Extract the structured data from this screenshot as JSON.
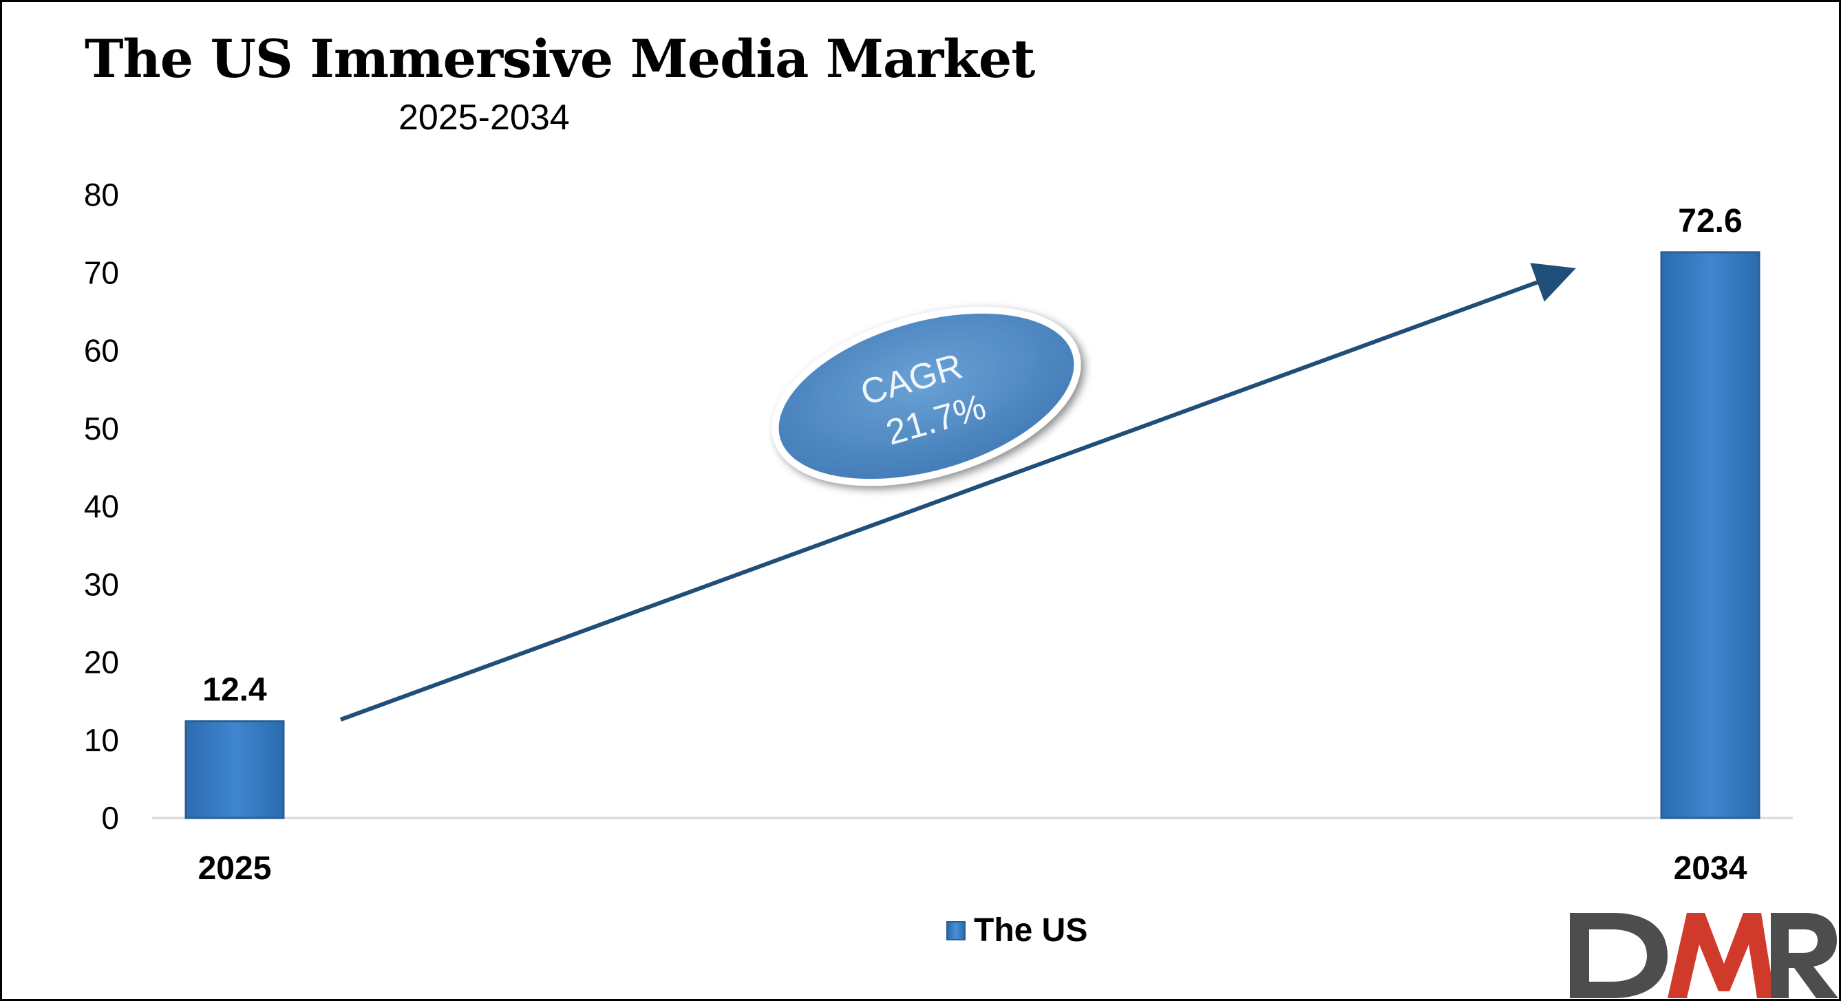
{
  "chart_data": {
    "type": "bar",
    "title": "The US Immersive Media Market",
    "subtitle": "2025-2034",
    "categories": [
      "2025",
      "2034"
    ],
    "series": [
      {
        "name": "The US",
        "values": [
          12.4,
          72.6
        ]
      }
    ],
    "data_labels": [
      "12.4",
      "72.6"
    ],
    "ylim": [
      0,
      80
    ],
    "yticks": [
      0,
      10,
      20,
      30,
      40,
      50,
      60,
      70,
      80
    ],
    "xlabel": "",
    "ylabel": "",
    "grid": false,
    "legend": {
      "position": "bottom",
      "entries": [
        "The US"
      ]
    },
    "annotation": {
      "line1": "CAGR",
      "line2": "21.7%"
    }
  },
  "colors": {
    "bar": "#3a7dc4",
    "bar_edge": "#2a5f96",
    "arrow": "#1f4e79",
    "bubble_fill": "#5b93c9",
    "bubble_border": "#ffffff",
    "logo_dark": "#4d4d4d",
    "logo_red": "#d03a2b"
  },
  "logo": {
    "text": "DMR",
    "icon": "dmr-logo"
  }
}
